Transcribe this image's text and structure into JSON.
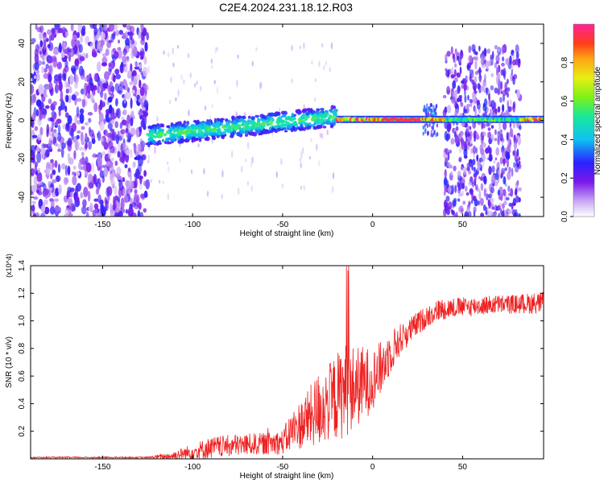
{
  "figure": {
    "title": "C2E4.2024.231.18.12.R03"
  },
  "chart_data": [
    {
      "type": "heatmap",
      "xlabel": "Height of straight line (km)",
      "ylabel": "Frequency (Hz)",
      "xlim": [
        -190,
        95
      ],
      "ylim": [
        -50,
        50
      ],
      "x_ticks": [
        -150,
        -100,
        -50,
        0,
        50
      ],
      "y_ticks": [
        -40,
        -20,
        0,
        20,
        40
      ],
      "colorbar": {
        "label": "Normalized spectral amplitude",
        "range": [
          0,
          1
        ],
        "ticks": [
          0.0,
          0.2,
          0.4,
          0.6,
          0.8
        ]
      },
      "regions": [
        {
          "x_range": [
            -190,
            -125
          ],
          "f_range": [
            -50,
            50
          ],
          "level": 0.18,
          "note": "broadband noise"
        },
        {
          "x_range": [
            -125,
            -20
          ],
          "f_center_start": -8,
          "f_center_end": 2,
          "level": 0.45,
          "note": "drifting line"
        },
        {
          "x_range": [
            -20,
            95
          ],
          "f_center": 0.5,
          "level": 1.0,
          "note": "stable line"
        },
        {
          "x_range": [
            40,
            82
          ],
          "f_range": [
            -50,
            38
          ],
          "level": 0.2,
          "note": "sidebands"
        }
      ]
    },
    {
      "type": "line",
      "xlabel": "Height of straight line (km)",
      "ylabel": "SNR (10 * v/v)",
      "y_multiplier": "(x10^4)",
      "xlim": [
        -190,
        95
      ],
      "ylim": [
        0,
        1.4
      ],
      "x_ticks": [
        -150,
        -100,
        -50,
        0,
        50
      ],
      "y_ticks": [
        0.2,
        0.4,
        0.6,
        0.8,
        1.0,
        1.2,
        1.4
      ],
      "color": "#ee2222",
      "series": [
        {
          "x": [
            -190,
            -150,
            -125,
            -112,
            -100,
            -90,
            -75,
            -60,
            -50,
            -45,
            -40,
            -35,
            -30,
            -25,
            -20,
            -15,
            -10,
            -5,
            0,
            5,
            10,
            15,
            20,
            25,
            30,
            35,
            40,
            50,
            60,
            70,
            80,
            90,
            95
          ],
          "base": [
            0.01,
            0.01,
            0.01,
            0.02,
            0.05,
            0.08,
            0.1,
            0.11,
            0.12,
            0.2,
            0.25,
            0.3,
            0.36,
            0.4,
            0.45,
            0.5,
            0.52,
            0.54,
            0.58,
            0.66,
            0.78,
            0.86,
            0.92,
            0.98,
            1.03,
            1.07,
            1.09,
            1.1,
            1.11,
            1.12,
            1.12,
            1.13,
            1.13
          ],
          "noise": [
            0.005,
            0.005,
            0.005,
            0.03,
            0.06,
            0.08,
            0.08,
            0.08,
            0.09,
            0.15,
            0.18,
            0.22,
            0.28,
            0.28,
            0.32,
            0.35,
            0.3,
            0.28,
            0.22,
            0.2,
            0.16,
            0.12,
            0.1,
            0.09,
            0.08,
            0.08,
            0.08,
            0.07,
            0.07,
            0.07,
            0.07,
            0.08,
            0.08
          ]
        }
      ]
    }
  ]
}
